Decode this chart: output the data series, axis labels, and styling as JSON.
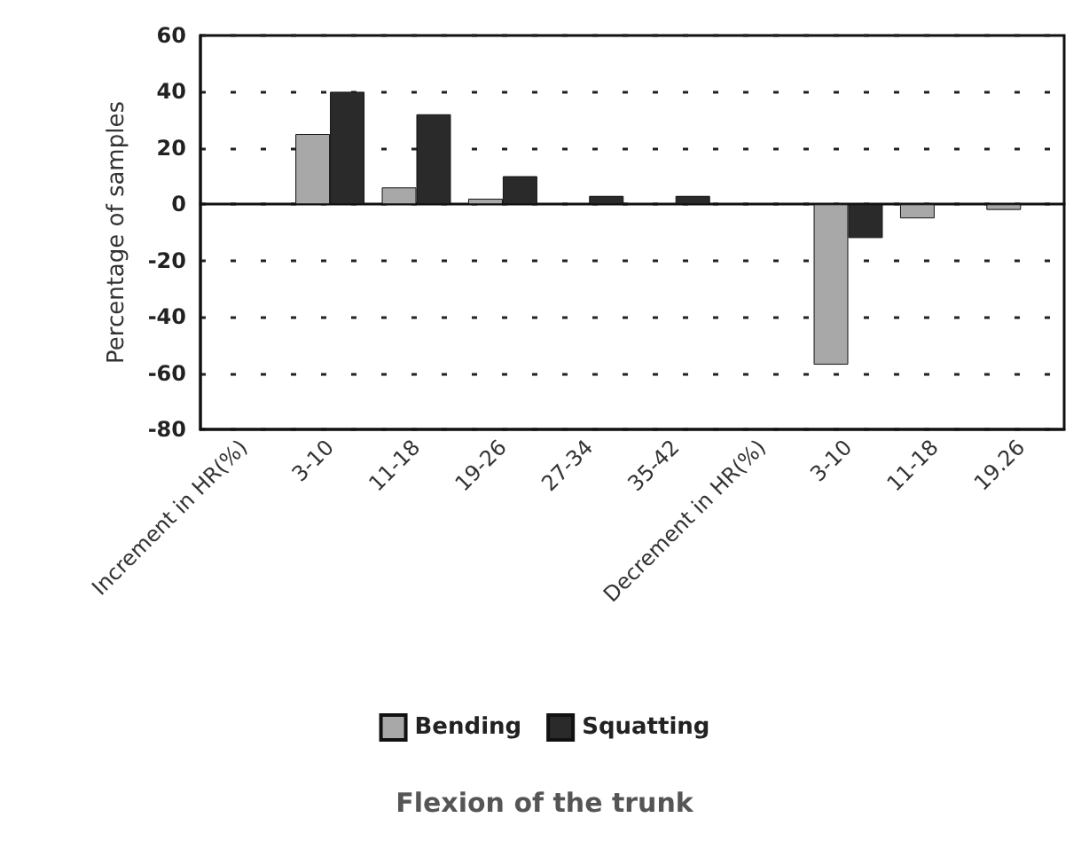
{
  "chart_data": {
    "type": "bar",
    "annotations": [
      "Flexion of the trunk"
    ],
    "ylabel": "Percentage of samples",
    "categories": [
      "Increment in HR(%)",
      "3-10",
      "11-18",
      "19-26",
      "27-34",
      "35-42",
      "Decrement in HR(%)",
      "3-10",
      "11-18",
      "19.26"
    ],
    "series": [
      {
        "name": "Bending",
        "color": "#a8a8a8",
        "values": [
          null,
          25,
          6,
          2,
          null,
          null,
          null,
          -57,
          -5,
          -2
        ]
      },
      {
        "name": "Squatting",
        "color": "#2a2a2a",
        "values": [
          null,
          40,
          32,
          10,
          3,
          3,
          null,
          -12,
          null,
          null
        ]
      }
    ],
    "ylim": [
      -80,
      60
    ],
    "yticks": [
      -80,
      -60,
      -40,
      -20,
      0,
      20,
      40,
      60
    ],
    "grid": "y",
    "legend": "bottom"
  }
}
